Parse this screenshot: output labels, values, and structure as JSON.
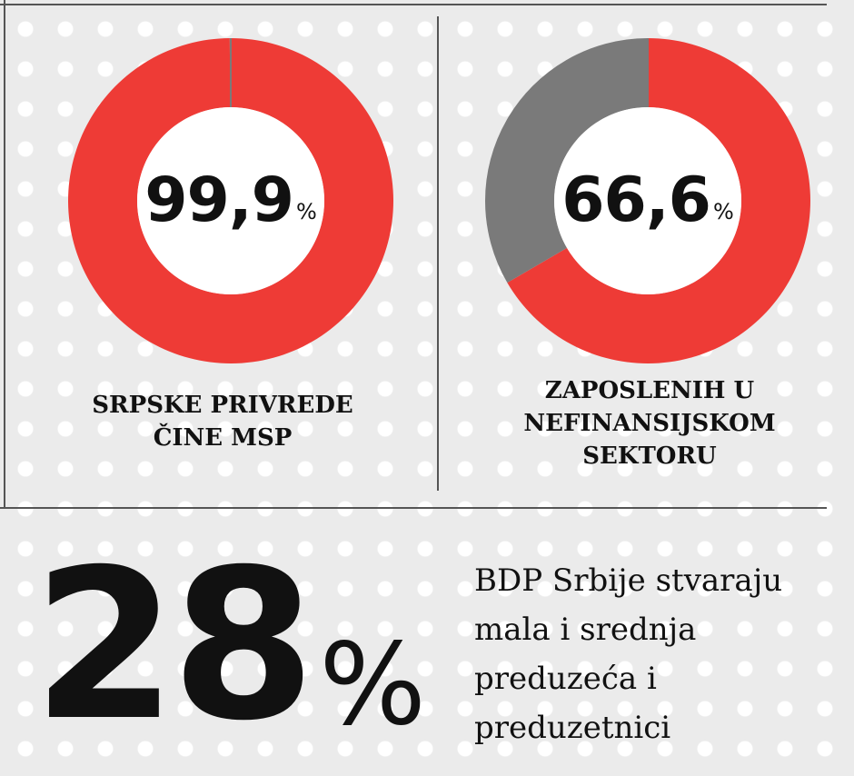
{
  "chart_data": [
    {
      "type": "pie",
      "value_label": "99,9",
      "unit": "%",
      "slices": [
        {
          "value": 99.9,
          "color": "#ee3b36"
        },
        {
          "value": 0.1,
          "color": "#7a7a7a"
        }
      ],
      "caption": [
        "SRPSKE PRIVREDE",
        "ČINE MSP"
      ]
    },
    {
      "type": "pie",
      "value_label": "66,6",
      "unit": "%",
      "slices": [
        {
          "value": 66.6,
          "color": "#ee3b36"
        },
        {
          "value": 33.4,
          "color": "#7a7a7a"
        }
      ],
      "caption": [
        "ZAPOSLENIH U",
        "NEFINANSIJSKOM",
        "SEKTORU"
      ]
    }
  ],
  "highlight": {
    "value": "28",
    "unit": "%",
    "description": [
      "BDP Srbije stvaraju",
      "mala i srednja",
      "preduzeća i",
      "preduzetnici"
    ]
  }
}
